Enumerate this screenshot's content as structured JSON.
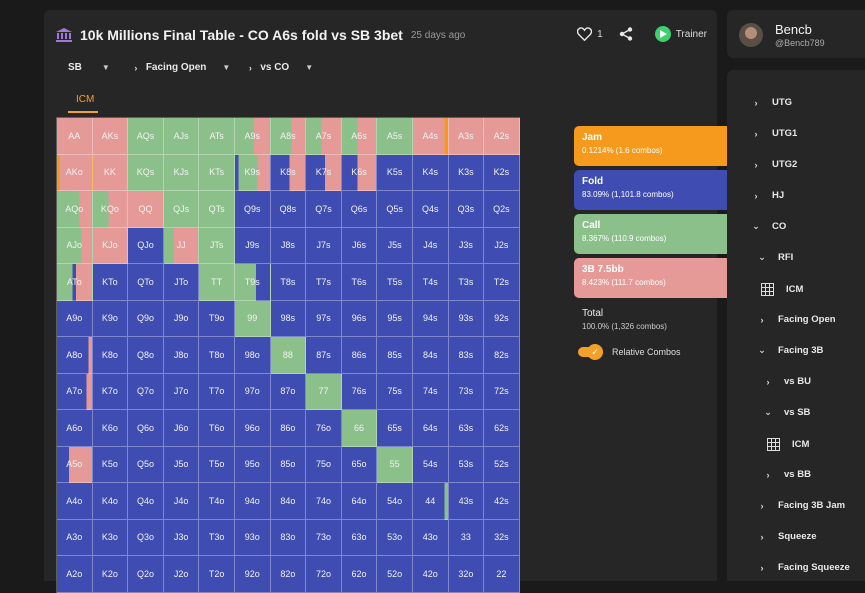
{
  "header": {
    "title": "10k Millions Final Table - CO A6s fold vs SB 3bet",
    "time_ago": "25 days ago",
    "likes": "1",
    "trainer_label": "Trainer"
  },
  "breadcrumbs": [
    "SB",
    "Facing Open",
    "vs CO"
  ],
  "tab": "ICM",
  "colors": {
    "jam": "#f59a1c",
    "fold": "#3f4db3",
    "call": "#8cc08a",
    "threebet": "#e59a98",
    "accent": "#f4a12b"
  },
  "grid": {
    "rows": [
      [
        "AA",
        "AKs",
        "AQs",
        "AJs",
        "ATs",
        "A9s",
        "A8s",
        "A7s",
        "A6s",
        "A5s",
        "A4s",
        "A3s",
        "A2s"
      ],
      [
        "AKo",
        "KK",
        "KQs",
        "KJs",
        "KTs",
        "K9s",
        "K8s",
        "K7s",
        "K6s",
        "K5s",
        "K4s",
        "K3s",
        "K2s"
      ],
      [
        "AQo",
        "KQo",
        "QQ",
        "QJs",
        "QTs",
        "Q9s",
        "Q8s",
        "Q7s",
        "Q6s",
        "Q5s",
        "Q4s",
        "Q3s",
        "Q2s"
      ],
      [
        "AJo",
        "KJo",
        "QJo",
        "JJ",
        "JTs",
        "J9s",
        "J8s",
        "J7s",
        "J6s",
        "J5s",
        "J4s",
        "J3s",
        "J2s"
      ],
      [
        "ATo",
        "KTo",
        "QTo",
        "JTo",
        "TT",
        "T9s",
        "T8s",
        "T7s",
        "T6s",
        "T5s",
        "T4s",
        "T3s",
        "T2s"
      ],
      [
        "A9o",
        "K9o",
        "Q9o",
        "J9o",
        "T9o",
        "99",
        "98s",
        "97s",
        "96s",
        "95s",
        "94s",
        "93s",
        "92s"
      ],
      [
        "A8o",
        "K8o",
        "Q8o",
        "J8o",
        "T8o",
        "98o",
        "88",
        "87s",
        "86s",
        "85s",
        "84s",
        "83s",
        "82s"
      ],
      [
        "A7o",
        "K7o",
        "Q7o",
        "J7o",
        "T7o",
        "97o",
        "87o",
        "77",
        "76s",
        "75s",
        "74s",
        "73s",
        "72s"
      ],
      [
        "A6o",
        "K6o",
        "Q6o",
        "J6o",
        "T6o",
        "96o",
        "86o",
        "76o",
        "66",
        "65s",
        "64s",
        "63s",
        "62s"
      ],
      [
        "A5o",
        "K5o",
        "Q5o",
        "J5o",
        "T5o",
        "95o",
        "85o",
        "75o",
        "65o",
        "55",
        "54s",
        "53s",
        "52s"
      ],
      [
        "A4o",
        "K4o",
        "Q4o",
        "J4o",
        "T4o",
        "94o",
        "84o",
        "74o",
        "64o",
        "54o",
        "44",
        "43s",
        "42s"
      ],
      [
        "A3o",
        "K3o",
        "Q3o",
        "J3o",
        "T3o",
        "93o",
        "83o",
        "73o",
        "63o",
        "53o",
        "43o",
        "33",
        "32s"
      ],
      [
        "A2o",
        "K2o",
        "Q2o",
        "J2o",
        "T2o",
        "92o",
        "82o",
        "72o",
        "62o",
        "52o",
        "42o",
        "32o",
        "22"
      ]
    ],
    "mix": {
      "AA": [
        [
          "threebet",
          1
        ]
      ],
      "AKs": [
        [
          "threebet",
          1
        ]
      ],
      "AQs": [
        [
          "call",
          1
        ]
      ],
      "AJs": [
        [
          "call",
          1
        ]
      ],
      "ATs": [
        [
          "call",
          1
        ]
      ],
      "A9s": [
        [
          "call",
          0.55
        ],
        [
          "threebet",
          0.45
        ]
      ],
      "A8s": [
        [
          "call",
          0.6
        ],
        [
          "threebet",
          0.4
        ]
      ],
      "A7s": [
        [
          "call",
          0.45
        ],
        [
          "threebet",
          0.55
        ]
      ],
      "A6s": [
        [
          "call",
          0.45
        ],
        [
          "threebet",
          0.55
        ]
      ],
      "A5s": [
        [
          "call",
          1
        ]
      ],
      "A4s": [
        [
          "threebet",
          0.9
        ],
        [
          "jam",
          0.1
        ]
      ],
      "A3s": [
        [
          "threebet",
          1
        ]
      ],
      "A2s": [
        [
          "threebet",
          1
        ]
      ],
      "AKo": [
        [
          "jam",
          0.08
        ],
        [
          "threebet",
          0.92
        ]
      ],
      "KK": [
        [
          "threebet",
          1
        ]
      ],
      "KQs": [
        [
          "call",
          1
        ]
      ],
      "KJs": [
        [
          "call",
          1
        ]
      ],
      "KTs": [
        [
          "call",
          1
        ]
      ],
      "K9s": [
        [
          "fold",
          0.1
        ],
        [
          "call",
          0.55
        ],
        [
          "threebet",
          0.35
        ]
      ],
      "K8s": [
        [
          "fold",
          0.55
        ],
        [
          "threebet",
          0.45
        ]
      ],
      "K7s": [
        [
          "fold",
          0.55
        ],
        [
          "threebet",
          0.45
        ]
      ],
      "K6s": [
        [
          "fold",
          0.45
        ],
        [
          "threebet",
          0.55
        ]
      ],
      "AQo": [
        [
          "call",
          0.65
        ],
        [
          "threebet",
          0.35
        ]
      ],
      "KQo": [
        [
          "call",
          0.45
        ],
        [
          "threebet",
          0.55
        ]
      ],
      "QQ": [
        [
          "threebet",
          1
        ]
      ],
      "QJs": [
        [
          "call",
          1
        ]
      ],
      "QTs": [
        [
          "call",
          1
        ]
      ],
      "AJo": [
        [
          "call",
          0.7
        ],
        [
          "threebet",
          0.3
        ]
      ],
      "KJo": [
        [
          "threebet",
          1
        ]
      ],
      "JJ": [
        [
          "call",
          0.3
        ],
        [
          "threebet",
          0.7
        ]
      ],
      "JTs": [
        [
          "call",
          1
        ]
      ],
      "ATo": [
        [
          "call",
          0.45
        ],
        [
          "fold",
          0.1
        ],
        [
          "threebet",
          0.45
        ]
      ],
      "TT": [
        [
          "call",
          1
        ]
      ],
      "T9s": [
        [
          "call",
          0.6
        ],
        [
          "fold",
          0.4
        ]
      ],
      "99": [
        [
          "call",
          1
        ]
      ],
      "A8o": [
        [
          "fold",
          0.9
        ],
        [
          "threebet",
          0.1
        ]
      ],
      "88": [
        [
          "call",
          1
        ]
      ],
      "A7o": [
        [
          "fold",
          0.85
        ],
        [
          "threebet",
          0.15
        ]
      ],
      "77": [
        [
          "call",
          1
        ]
      ],
      "66": [
        [
          "call",
          1
        ]
      ],
      "A5o": [
        [
          "fold",
          0.35
        ],
        [
          "threebet",
          0.65
        ]
      ],
      "55": [
        [
          "call",
          1
        ]
      ],
      "44": [
        [
          "fold",
          0.9
        ],
        [
          "call",
          0.1
        ]
      ]
    }
  },
  "action_boxes": [
    {
      "key": "jam",
      "name": "Jam",
      "value": "0.1214% (1.6 combos)"
    },
    {
      "key": "fold",
      "name": "Fold",
      "value": "83.09% (1,101.8 combos)"
    },
    {
      "key": "call",
      "name": "Call",
      "value": "8.367% (110.9 combos)"
    },
    {
      "key": "threebet",
      "name": "3B 7.5bb",
      "value": "8.423% (111.7 combos)"
    }
  ],
  "total": {
    "label": "Total",
    "value": "100.0% (1,326 combos)"
  },
  "relative_combos_label": "Relative Combos",
  "user": {
    "name": "Bencb",
    "handle": "@Bencb789"
  },
  "tree": [
    {
      "label": "UTG",
      "chev": "right",
      "icon": "chevron-right",
      "x": 25,
      "y": 27
    },
    {
      "label": "UTG1",
      "chev": "right",
      "icon": "chevron-right",
      "x": 25,
      "y": 58
    },
    {
      "label": "UTG2",
      "chev": "right",
      "icon": "chevron-right",
      "x": 25,
      "y": 89
    },
    {
      "label": "HJ",
      "chev": "right",
      "icon": "chevron-right",
      "x": 25,
      "y": 120
    },
    {
      "label": "CO",
      "chev": "down",
      "icon": "chevron-down",
      "x": 25,
      "y": 151
    },
    {
      "label": "RFI",
      "chev": "down",
      "icon": "chevron-down",
      "x": 31,
      "y": 182
    },
    {
      "label": "ICM",
      "chev": "grid",
      "icon": "grid",
      "x": 34,
      "y": 213
    },
    {
      "label": "Facing Open",
      "chev": "right",
      "icon": "chevron-right",
      "x": 31,
      "y": 244
    },
    {
      "label": "Facing 3B",
      "chev": "down",
      "icon": "chevron-down",
      "x": 31,
      "y": 275
    },
    {
      "label": "vs BU",
      "chev": "right",
      "icon": "chevron-right",
      "x": 37,
      "y": 306
    },
    {
      "label": "vs SB",
      "chev": "down",
      "icon": "chevron-down",
      "x": 37,
      "y": 337
    },
    {
      "label": "ICM",
      "chev": "grid",
      "icon": "grid",
      "x": 40,
      "y": 368
    },
    {
      "label": "vs BB",
      "chev": "right",
      "icon": "chevron-right",
      "x": 37,
      "y": 399
    },
    {
      "label": "Facing 3B Jam",
      "chev": "right",
      "icon": "chevron-right",
      "x": 31,
      "y": 430
    },
    {
      "label": "Squeeze",
      "chev": "right",
      "icon": "chevron-right",
      "x": 31,
      "y": 461
    },
    {
      "label": "Facing Squeeze",
      "chev": "right",
      "icon": "chevron-right",
      "x": 31,
      "y": 492
    }
  ]
}
